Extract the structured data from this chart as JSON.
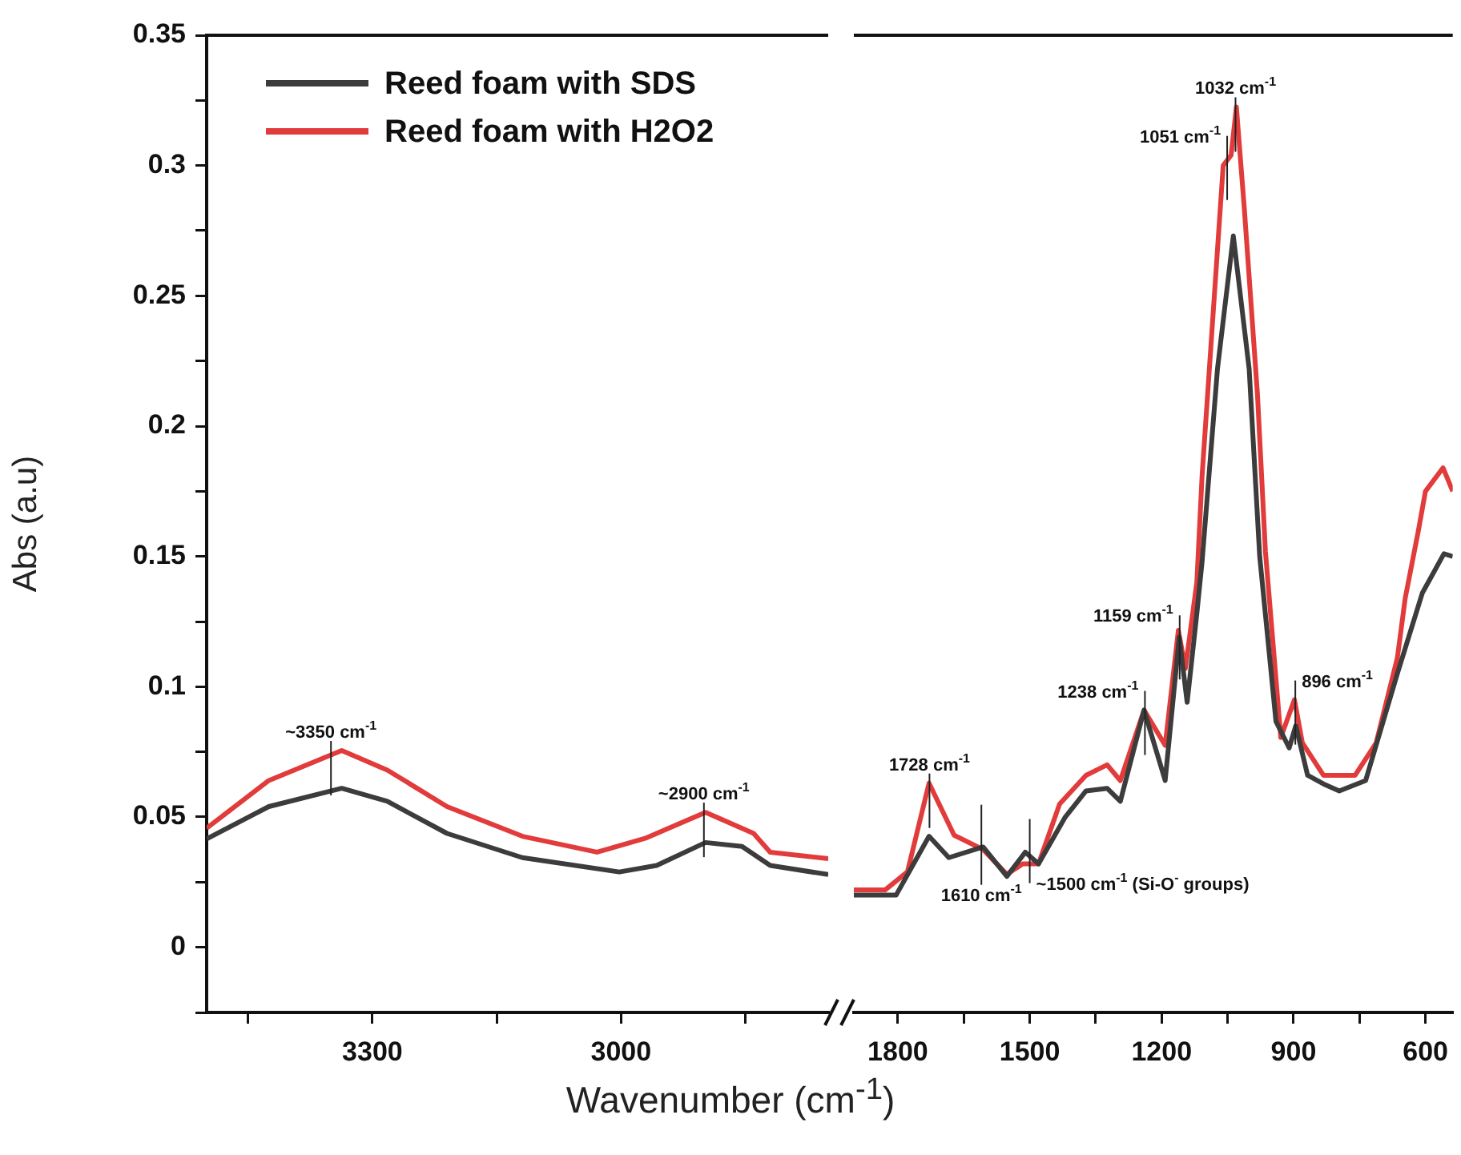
{
  "chart_data": [
    {
      "type": "line",
      "xlabel": "Wavenumber (cm$^{-1}$)",
      "ylabel": "Abs (a.u)",
      "legend": "top left",
      "xlim": [
        3500,
        2750
      ],
      "xticks": [
        {
          "value": 3450,
          "label": null
        },
        3300,
        {
          "value": 3150,
          "label": null
        },
        3000,
        {
          "value": 2850,
          "label": null
        }
      ],
      "ylim": [
        -0.025,
        0.35
      ],
      "yticks": [
        {
          "value": -0.025,
          "label": null
        },
        0,
        {
          "value": 0.025,
          "label": null
        },
        0.05,
        {
          "value": 0.075,
          "label": null
        },
        0.1,
        {
          "value": 0.125,
          "label": null
        },
        0.15,
        {
          "value": 0.175,
          "label": null
        },
        0.2,
        {
          "value": 0.225,
          "label": null
        },
        0.25,
        {
          "value": 0.275,
          "label": null
        },
        0.3,
        {
          "value": 0.325,
          "label": null
        },
        0.35
      ],
      "series": [
        {
          "name": "Reed foam with SDS",
          "color": "#3c3c3c",
          "x": [
            3500,
            3425,
            3337,
            3282,
            3210,
            3119,
            3002,
            2957,
            2898,
            2854,
            2820,
            2750
          ],
          "values": [
            0.0416,
            0.054,
            0.061,
            0.056,
            0.0437,
            0.0344,
            0.0289,
            0.0314,
            0.0402,
            0.0387,
            0.0314,
            0.0279
          ]
        },
        {
          "name": "Reed foam with H2O2",
          "color": "#e23b3b",
          "x": [
            3500,
            3425,
            3337,
            3282,
            3210,
            3119,
            3029,
            2971,
            2898,
            2840,
            2820,
            2750
          ],
          "values": [
            0.0457,
            0.064,
            0.0755,
            0.068,
            0.054,
            0.0426,
            0.0365,
            0.0418,
            0.0518,
            0.0437,
            0.0365,
            0.034
          ]
        }
      ],
      "annotations": [
        {
          "text": "~3350 cm$^{-1}$",
          "x": 3350,
          "y": 0.0755
        },
        {
          "text": "~2900 cm$^{-1}$",
          "x": 2900,
          "y": 0.0518
        }
      ]
    },
    {
      "type": "line",
      "tick_labels": "x",
      "xlim": [
        1900,
        538
      ],
      "xticks": [
        1800,
        {
          "value": 1650,
          "label": null
        },
        1500,
        {
          "value": 1350,
          "label": null
        },
        1200,
        {
          "value": 1050,
          "label": null
        },
        900,
        {
          "value": 750,
          "label": null
        },
        600
      ],
      "ylim": [
        -0.025,
        0.35
      ],
      "yticks": [
        0,
        0.05,
        0.1,
        0.15,
        0.2,
        0.25,
        0.3,
        0.35
      ],
      "series": [
        {
          "color": "#3c3c3c",
          "x": [
            1900,
            1804,
            1729,
            1684,
            1606,
            1552,
            1510,
            1480,
            1420,
            1372,
            1324,
            1294,
            1240,
            1192,
            1160,
            1142,
            1120,
            1108,
            1073,
            1037,
            1001,
            977,
            940,
            910,
            895,
            868,
            832,
            796,
            736,
            664,
            607,
            558,
            538
          ],
          "values": [
            0.02,
            0.02,
            0.0426,
            0.0344,
            0.0385,
            0.0272,
            0.0365,
            0.032,
            0.0498,
            0.06,
            0.061,
            0.056,
            0.091,
            0.064,
            0.119,
            0.094,
            0.128,
            0.148,
            0.222,
            0.273,
            0.222,
            0.15,
            0.0867,
            0.0765,
            0.085,
            0.066,
            0.0627,
            0.06,
            0.064,
            0.105,
            0.136,
            0.151,
            0.15
          ]
        },
        {
          "color": "#e23b3b",
          "x": [
            1900,
            1829,
            1778,
            1729,
            1672,
            1606,
            1552,
            1516,
            1480,
            1432,
            1372,
            1324,
            1294,
            1240,
            1192,
            1162,
            1146,
            1120,
            1108,
            1060,
            1042,
            1030,
            1012,
            982,
            964,
            929,
            898,
            880,
            832,
            760,
            712,
            664,
            646,
            616,
            600,
            560,
            538
          ],
          "values": [
            0.022,
            0.022,
            0.029,
            0.063,
            0.043,
            0.0375,
            0.028,
            0.032,
            0.032,
            0.055,
            0.066,
            0.07,
            0.064,
            0.091,
            0.0775,
            0.1216,
            0.107,
            0.14,
            0.181,
            0.3,
            0.304,
            0.3225,
            0.2835,
            0.212,
            0.152,
            0.0805,
            0.095,
            0.0785,
            0.066,
            0.066,
            0.0785,
            0.111,
            0.134,
            0.16,
            0.175,
            0.184,
            0.175
          ]
        }
      ],
      "annotations": [
        {
          "text": "1728 cm$^{-1}$",
          "x": 1728,
          "y": 0.063
        },
        {
          "text": "1610 cm$^{-1}$",
          "x": 1610,
          "y": 0.0375
        },
        {
          "text": "~1500 cm$^{-1}$ (Si-O$^{-}$ groups)",
          "x": 1500,
          "y": 0.032
        },
        {
          "text": "1238 cm$^{-1}$",
          "x": 1238,
          "y": 0.091
        },
        {
          "text": "1159 cm$^{-1}$",
          "x": 1159,
          "y": 0.12
        },
        {
          "text": "1051 cm$^{-1}$",
          "x": 1051,
          "y": 0.304
        },
        {
          "text": "1032 cm$^{-1}$",
          "x": 1032,
          "y": 0.3225
        },
        {
          "text": "896 cm$^{-1}$",
          "x": 896,
          "y": 0.095
        }
      ]
    }
  ]
}
